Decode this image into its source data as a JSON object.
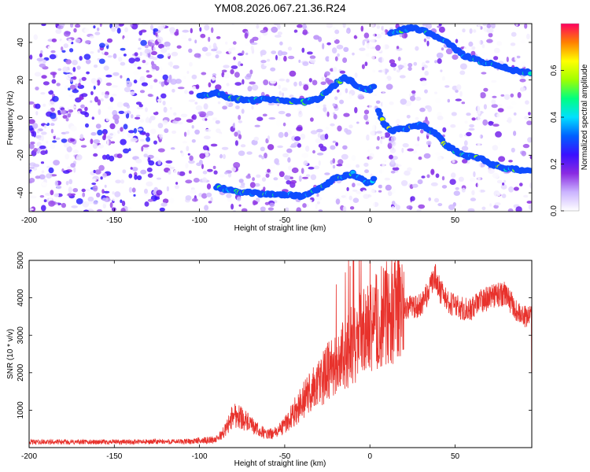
{
  "title": "YM08.2026.067.21.36.R24",
  "colors": {
    "spectrogram_base": "#7d2cff",
    "snr_line": "#e8322c",
    "colormap": [
      "#ffffff",
      "#cbb4ff",
      "#8a2be2",
      "#3a10ff",
      "#0060ff",
      "#00e0ff",
      "#00ff80",
      "#a0ff00",
      "#ffff00",
      "#ff8000",
      "#ff0060"
    ]
  },
  "chart_data": [
    {
      "id": "spectrogram",
      "type": "heatmap",
      "xlabel": "Height of straight line (km)",
      "ylabel": "Frequency (Hz)",
      "xlim": [
        -200,
        95
      ],
      "ylim": [
        -50,
        50
      ],
      "xticks": [
        -200,
        -150,
        -100,
        -50,
        0,
        50
      ],
      "yticks": [
        -40,
        -20,
        0,
        20,
        40
      ],
      "colorbar": {
        "label": "Normalized spectral amplitude",
        "range": [
          0,
          0.8
        ],
        "ticks": [
          "0.0",
          "0.2",
          "0.4",
          "0.6"
        ],
        "tick_values": [
          0,
          0.2,
          0.4,
          0.6
        ]
      },
      "traces": [
        {
          "name": "upper trace",
          "points": [
            [
              -100,
              12
            ],
            [
              -90,
              13
            ],
            [
              -80,
              10
            ],
            [
              -70,
              9
            ],
            [
              -60,
              10
            ],
            [
              -50,
              9
            ],
            [
              -40,
              8
            ],
            [
              -30,
              10
            ],
            [
              -20,
              18
            ],
            [
              -15,
              21
            ],
            [
              -10,
              19
            ],
            [
              -5,
              15
            ],
            [
              0,
              15
            ],
            [
              3,
              17
            ]
          ],
          "amplitude": 0.3
        },
        {
          "name": "lower trace",
          "points": [
            [
              -90,
              -37
            ],
            [
              -80,
              -39
            ],
            [
              -70,
              -40
            ],
            [
              -60,
              -41
            ],
            [
              -50,
              -41
            ],
            [
              -40,
              -42
            ],
            [
              -30,
              -38
            ],
            [
              -20,
              -32
            ],
            [
              -10,
              -30
            ],
            [
              -5,
              -33
            ],
            [
              0,
              -35
            ],
            [
              3,
              -32
            ]
          ],
          "amplitude": 0.3
        },
        {
          "name": "post-zero upper",
          "points": [
            [
              12,
              45
            ],
            [
              25,
              48
            ],
            [
              35,
              45
            ],
            [
              45,
              40
            ],
            [
              55,
              33
            ],
            [
              65,
              30
            ],
            [
              75,
              28
            ],
            [
              85,
              25
            ],
            [
              95,
              24
            ]
          ],
          "amplitude": 0.3
        },
        {
          "name": "post-zero middle",
          "points": [
            [
              5,
              4
            ],
            [
              8,
              -3
            ],
            [
              12,
              -7
            ],
            [
              20,
              -6
            ],
            [
              30,
              -4
            ],
            [
              38,
              -8
            ],
            [
              45,
              -15
            ],
            [
              55,
              -20
            ],
            [
              65,
              -22
            ],
            [
              72,
              -25
            ],
            [
              80,
              -27
            ],
            [
              90,
              -28
            ],
            [
              95,
              -28
            ]
          ],
          "amplitude": 0.35
        }
      ]
    },
    {
      "id": "snr",
      "type": "line",
      "xlabel": "Height of straight line (km)",
      "ylabel": "SNR (10 * v/v)",
      "xlim": [
        -200,
        95
      ],
      "ylim": [
        0,
        5000
      ],
      "xticks": [
        -200,
        -150,
        -100,
        -50,
        0,
        50
      ],
      "yticks": [
        1000,
        2000,
        3000,
        4000,
        5000
      ],
      "series": [
        {
          "name": "SNR",
          "envelope": [
            [
              -200,
              150
            ],
            [
              -150,
              150
            ],
            [
              -110,
              160
            ],
            [
              -100,
              180
            ],
            [
              -90,
              220
            ],
            [
              -85,
              450
            ],
            [
              -80,
              900
            ],
            [
              -75,
              800
            ],
            [
              -70,
              600
            ],
            [
              -65,
              450
            ],
            [
              -60,
              350
            ],
            [
              -55,
              400
            ],
            [
              -50,
              600
            ],
            [
              -45,
              900
            ],
            [
              -40,
              1200
            ],
            [
              -35,
              1500
            ],
            [
              -30,
              1700
            ],
            [
              -25,
              2000
            ],
            [
              -20,
              2200
            ],
            [
              -15,
              2500
            ],
            [
              -10,
              2800
            ],
            [
              -5,
              3000
            ],
            [
              0,
              3200
            ],
            [
              5,
              3400
            ],
            [
              10,
              3600
            ],
            [
              15,
              3700
            ],
            [
              20,
              3750
            ],
            [
              25,
              3750
            ],
            [
              30,
              3800
            ],
            [
              35,
              4200
            ],
            [
              38,
              4600
            ],
            [
              40,
              4300
            ],
            [
              45,
              3900
            ],
            [
              50,
              3800
            ],
            [
              55,
              3700
            ],
            [
              60,
              3700
            ],
            [
              65,
              3900
            ],
            [
              70,
              4000
            ],
            [
              75,
              4100
            ],
            [
              80,
              4100
            ],
            [
              85,
              3700
            ],
            [
              90,
              3500
            ],
            [
              95,
              3500
            ]
          ],
          "noise_amplitude": 0.12
        }
      ]
    }
  ]
}
